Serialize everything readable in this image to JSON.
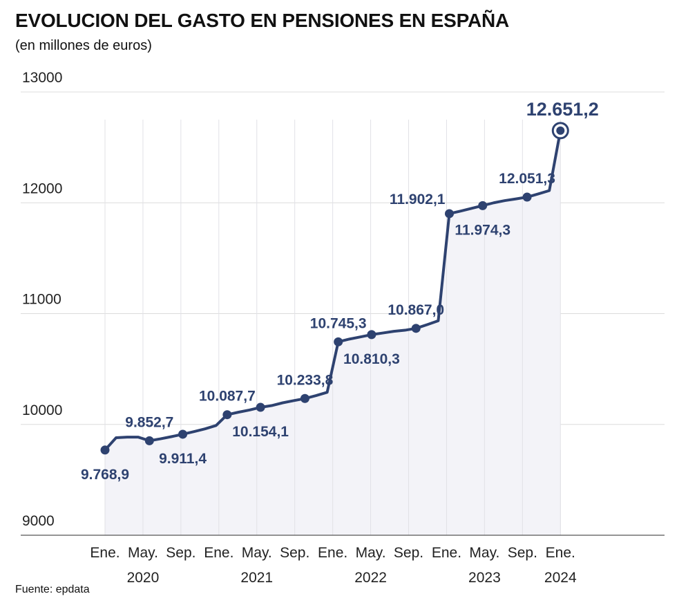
{
  "chart_data": {
    "type": "line",
    "title": "EVOLUCION DEL GASTO EN PENSIONES EN ESPAÑA",
    "subtitle": "(en millones de euros)",
    "source": "Fuente: epdata",
    "ylim": [
      9000,
      13000
    ],
    "yticks": [
      "9000",
      "10000",
      "11000",
      "12000",
      "13000"
    ],
    "grid": true,
    "line_color": "#2e4270",
    "area_color": "#f3f3f8",
    "months": [
      "Ene.",
      "May.",
      "Sep.",
      "Ene.",
      "May.",
      "Sep.",
      "Ene.",
      "May.",
      "Sep.",
      "Ene.",
      "May.",
      "Sep.",
      "Ene."
    ],
    "years": [
      "2020",
      "2021",
      "2022",
      "2023",
      "2024"
    ],
    "series": [
      {
        "values": [
          9768.9,
          9880,
          9885,
          9885,
          9852.7,
          9870,
          9890,
          9911.4,
          9935,
          9960,
          9990,
          10087.7,
          10110,
          10130,
          10154.1,
          10170,
          10195,
          10215,
          10233.8,
          10260,
          10290,
          10745.3,
          10770,
          10790,
          10810.3,
          10825,
          10840,
          10850,
          10867.0,
          10900,
          10935,
          11902.1,
          11925,
          11950,
          11974.3,
          12000,
          12020,
          12035,
          12051.3,
          12080,
          12110,
          12651.2
        ]
      }
    ],
    "data_labels": [
      {
        "index": 0,
        "text": "9.768,9",
        "pos": "below"
      },
      {
        "index": 4,
        "text": "9.852,7",
        "pos": "above"
      },
      {
        "index": 7,
        "text": "9.911,4",
        "pos": "below"
      },
      {
        "index": 11,
        "text": "10.087,7",
        "pos": "above"
      },
      {
        "index": 14,
        "text": "10.154,1",
        "pos": "below"
      },
      {
        "index": 18,
        "text": "10.233,8",
        "pos": "above"
      },
      {
        "index": 21,
        "text": "10.745,3",
        "pos": "above"
      },
      {
        "index": 24,
        "text": "10.810,3",
        "pos": "below"
      },
      {
        "index": 28,
        "text": "10.867,0",
        "pos": "above"
      },
      {
        "index": 31,
        "text": "11.902,1",
        "pos": "above-left"
      },
      {
        "index": 34,
        "text": "11.974,3",
        "pos": "below"
      },
      {
        "index": 38,
        "text": "12.051,3",
        "pos": "above"
      },
      {
        "index": 41,
        "text": "12.651,2",
        "pos": "above-big"
      }
    ]
  }
}
